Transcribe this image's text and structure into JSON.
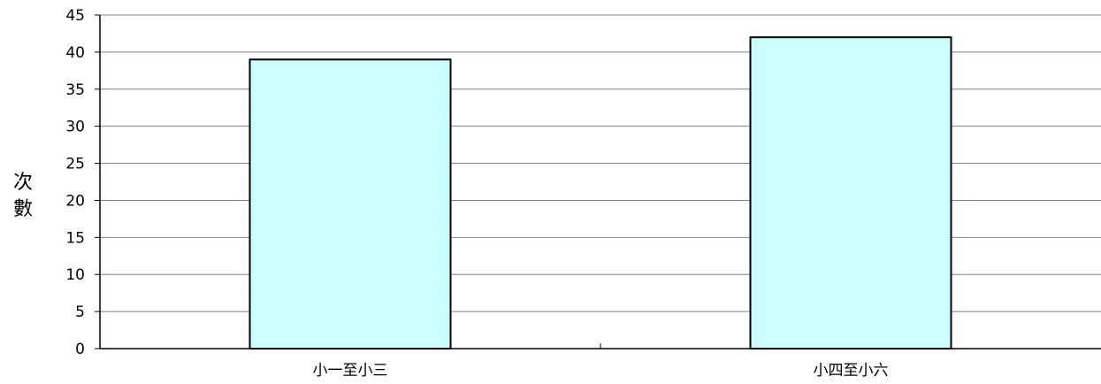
{
  "chart_data": {
    "type": "bar",
    "categories": [
      "小一至小三",
      "小四至小六"
    ],
    "values": [
      39,
      42
    ],
    "title": "",
    "xlabel": "",
    "ylabel": "次數",
    "ylabel_chars": [
      "次",
      "數"
    ],
    "ylim": [
      0,
      45
    ],
    "yticks": [
      "0",
      "5",
      "10",
      "15",
      "20",
      "25",
      "30",
      "35",
      "40",
      "45"
    ],
    "grid": true,
    "colors": {
      "bar_fill": "#ccffff",
      "bar_stroke": "#000000",
      "grid": "#808080",
      "axis": "#000000"
    }
  }
}
